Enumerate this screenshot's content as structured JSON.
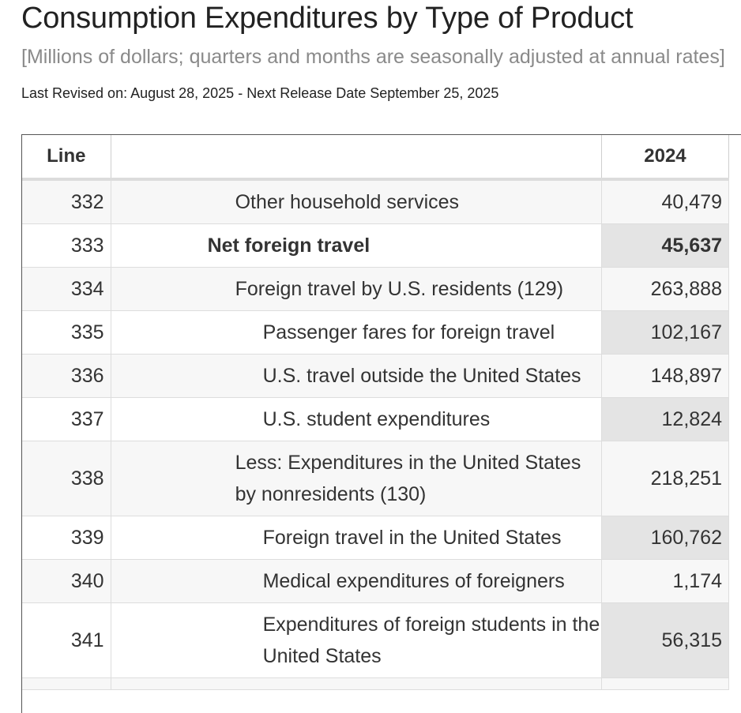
{
  "header": {
    "title": "Consumption Expenditures by Type of Product",
    "subtitle": "[Millions of dollars; quarters and months are seasonally adjusted at annual rates]",
    "revised": "Last Revised on: August 28, 2025 - Next Release Date September 25, 2025"
  },
  "table": {
    "columns": [
      "Line",
      "",
      "2024"
    ],
    "rows": [
      {
        "line": "332",
        "description": "Other household services",
        "value": "40,479",
        "indent": 2,
        "bold": false,
        "shaded": false
      },
      {
        "line": "333",
        "description": "Net foreign travel",
        "value": "45,637",
        "indent": 1,
        "bold": true,
        "shaded": true
      },
      {
        "line": "334",
        "description": "Foreign travel by U.S. residents (129)",
        "value": "263,888",
        "indent": 2,
        "bold": false,
        "shaded": false
      },
      {
        "line": "335",
        "description": "Passenger fares for foreign travel",
        "value": "102,167",
        "indent": 3,
        "bold": false,
        "shaded": true
      },
      {
        "line": "336",
        "description": "U.S. travel outside the United States",
        "value": "148,897",
        "indent": 3,
        "bold": false,
        "shaded": false
      },
      {
        "line": "337",
        "description": "U.S. student expenditures",
        "value": "12,824",
        "indent": 3,
        "bold": false,
        "shaded": true
      },
      {
        "line": "338",
        "description": "Less: Expenditures in the United States by nonresidents (130)",
        "value": "218,251",
        "indent": 2,
        "bold": false,
        "shaded": false
      },
      {
        "line": "339",
        "description": "Foreign travel in the United States",
        "value": "160,762",
        "indent": 3,
        "bold": false,
        "shaded": true
      },
      {
        "line": "340",
        "description": "Medical expenditures of foreigners",
        "value": "1,174",
        "indent": 3,
        "bold": false,
        "shaded": false
      },
      {
        "line": "341",
        "description": "Expenditures of foreign students in the United States",
        "value": "56,315",
        "indent": 3,
        "bold": false,
        "shaded": true
      },
      {
        "line": "",
        "description": "",
        "value": "",
        "indent": 2,
        "bold": false,
        "shaded": false
      }
    ]
  }
}
